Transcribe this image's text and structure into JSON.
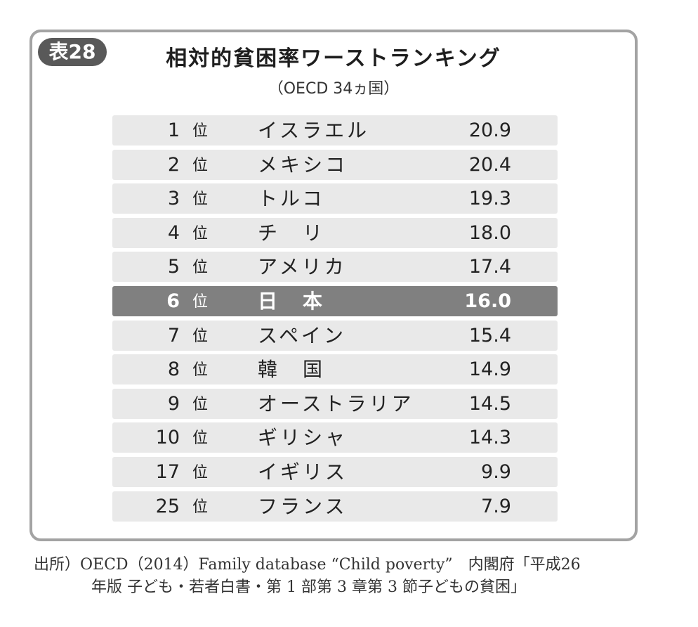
{
  "figure": {
    "badge": "表28",
    "title": "相対的貧困率ワーストランキング",
    "subtitle": "（OECD 34ヵ国）"
  },
  "rank_suffix": "位",
  "table": {
    "rows": [
      {
        "rank": "1",
        "country": "イスラエル",
        "value": "20.9",
        "highlight": false
      },
      {
        "rank": "2",
        "country": "メキシコ",
        "value": "20.4",
        "highlight": false
      },
      {
        "rank": "3",
        "country": "トルコ",
        "value": "19.3",
        "highlight": false
      },
      {
        "rank": "4",
        "country": "チ　リ",
        "value": "18.0",
        "highlight": false
      },
      {
        "rank": "5",
        "country": "アメリカ",
        "value": "17.4",
        "highlight": false
      },
      {
        "rank": "6",
        "country": "日　本",
        "value": "16.0",
        "highlight": true
      },
      {
        "rank": "7",
        "country": "スペイン",
        "value": "15.4",
        "highlight": false
      },
      {
        "rank": "8",
        "country": "韓　国",
        "value": "14.9",
        "highlight": false
      },
      {
        "rank": "9",
        "country": "オーストラリア",
        "value": "14.5",
        "highlight": false
      },
      {
        "rank": "10",
        "country": "ギリシャ",
        "value": "14.3",
        "highlight": false
      },
      {
        "rank": "17",
        "country": "イギリス",
        "value": "9.9",
        "highlight": false
      },
      {
        "rank": "25",
        "country": "フランス",
        "value": "7.9",
        "highlight": false
      }
    ]
  },
  "source": {
    "line1": "出所）OECD（2014）Family database “Child poverty”　内閣府「平成26",
    "line2": "年版  子ども・若者白書・第 1 部第 3 章第 3 節子どもの貧困」"
  },
  "colors": {
    "frame_border": "#a3a3a3",
    "badge_bg": "#595959",
    "row_bg": "#e9e9e9",
    "highlight_bg": "#808080"
  }
}
